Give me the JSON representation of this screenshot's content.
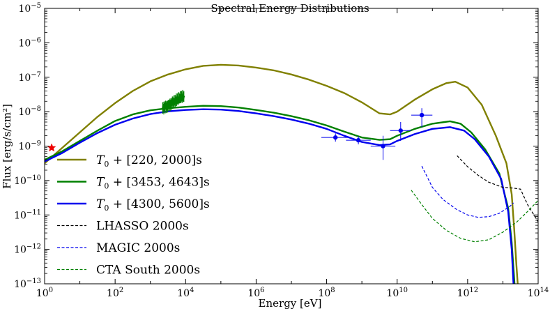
{
  "chart_data": {
    "type": "line",
    "title": "Spectral Energy Distributions",
    "xlabel": "Energy [eV]",
    "ylabel": "Flux [erg/s/cm²]",
    "xscale": "log",
    "yscale": "log",
    "xlim_exp": [
      0,
      14
    ],
    "ylim_exp": [
      -13,
      -5
    ],
    "xticks": [
      {
        "exp": 0,
        "base": "10",
        "sup": "0"
      },
      {
        "exp": 2,
        "base": "10",
        "sup": "2"
      },
      {
        "exp": 4,
        "base": "10",
        "sup": "4"
      },
      {
        "exp": 6,
        "base": "10",
        "sup": "6"
      },
      {
        "exp": 8,
        "base": "10",
        "sup": "8"
      },
      {
        "exp": 10,
        "base": "10",
        "sup": "10"
      },
      {
        "exp": 12,
        "base": "10",
        "sup": "12"
      },
      {
        "exp": 14,
        "base": "10",
        "sup": "14"
      }
    ],
    "yticks": [
      {
        "exp": -5,
        "base": "10",
        "sup": "−5"
      },
      {
        "exp": -6,
        "base": "10",
        "sup": "−6"
      },
      {
        "exp": -7,
        "base": "10",
        "sup": "−7"
      },
      {
        "exp": -8,
        "base": "10",
        "sup": "−8"
      },
      {
        "exp": -9,
        "base": "10",
        "sup": "−9"
      },
      {
        "exp": -10,
        "base": "10",
        "sup": "−10"
      },
      {
        "exp": -11,
        "base": "10",
        "sup": "−11"
      },
      {
        "exp": -12,
        "base": "10",
        "sup": "−12"
      },
      {
        "exp": -13,
        "base": "10",
        "sup": "−13"
      }
    ],
    "series": [
      {
        "key": "s220",
        "name": "T0 + [220, 2000]s",
        "label_main": "T",
        "label_sub": "0",
        "label_rest": " + [220, 2000]s",
        "color": "#808000",
        "style": "solid",
        "points": [
          [
            0,
            -9.5
          ],
          [
            0.5,
            -9.05
          ],
          [
            1,
            -8.6
          ],
          [
            1.5,
            -8.15
          ],
          [
            2,
            -7.75
          ],
          [
            2.5,
            -7.4
          ],
          [
            3,
            -7.12
          ],
          [
            3.5,
            -6.92
          ],
          [
            4,
            -6.77
          ],
          [
            4.5,
            -6.67
          ],
          [
            5,
            -6.64
          ],
          [
            5.5,
            -6.66
          ],
          [
            6,
            -6.72
          ],
          [
            6.5,
            -6.8
          ],
          [
            7,
            -6.92
          ],
          [
            7.5,
            -7.07
          ],
          [
            8,
            -7.25
          ],
          [
            8.5,
            -7.46
          ],
          [
            9,
            -7.73
          ],
          [
            9.5,
            -8.05
          ],
          [
            9.8,
            -8.08
          ],
          [
            10,
            -8.0
          ],
          [
            10.5,
            -7.65
          ],
          [
            11,
            -7.35
          ],
          [
            11.4,
            -7.17
          ],
          [
            11.65,
            -7.13
          ],
          [
            12,
            -7.3
          ],
          [
            12.4,
            -7.8
          ],
          [
            12.8,
            -8.7
          ],
          [
            13.1,
            -9.5
          ],
          [
            13.25,
            -10.4
          ],
          [
            13.32,
            -11.4
          ],
          [
            13.38,
            -12.4
          ],
          [
            13.42,
            -13.0
          ]
        ]
      },
      {
        "key": "s3453",
        "name": "T0 + [3453, 4643]s",
        "label_main": "T",
        "label_sub": "0",
        "label_rest": " + [3453, 4643]s",
        "color": "#008000",
        "style": "solid",
        "points": [
          [
            0,
            -9.4
          ],
          [
            0.5,
            -9.15
          ],
          [
            1,
            -8.85
          ],
          [
            1.5,
            -8.55
          ],
          [
            2,
            -8.27
          ],
          [
            2.5,
            -8.08
          ],
          [
            3,
            -7.96
          ],
          [
            3.5,
            -7.9
          ],
          [
            4,
            -7.86
          ],
          [
            4.5,
            -7.83
          ],
          [
            5,
            -7.84
          ],
          [
            5.5,
            -7.88
          ],
          [
            6,
            -7.95
          ],
          [
            6.5,
            -8.03
          ],
          [
            7,
            -8.13
          ],
          [
            7.5,
            -8.25
          ],
          [
            8,
            -8.4
          ],
          [
            8.5,
            -8.58
          ],
          [
            9,
            -8.75
          ],
          [
            9.5,
            -8.82
          ],
          [
            9.8,
            -8.8
          ],
          [
            10,
            -8.7
          ],
          [
            10.5,
            -8.5
          ],
          [
            11,
            -8.35
          ],
          [
            11.5,
            -8.28
          ],
          [
            11.8,
            -8.35
          ],
          [
            12.1,
            -8.6
          ],
          [
            12.5,
            -9.1
          ],
          [
            12.9,
            -9.8
          ],
          [
            13.15,
            -10.8
          ],
          [
            13.25,
            -11.8
          ],
          [
            13.33,
            -13.0
          ]
        ]
      },
      {
        "key": "s4300",
        "name": "T0 + [4300, 5600]s",
        "label_main": "T",
        "label_sub": "0",
        "label_rest": " + [4300, 5600]s",
        "color": "#0000ee",
        "style": "solid",
        "points": [
          [
            0,
            -9.45
          ],
          [
            0.5,
            -9.2
          ],
          [
            1,
            -8.9
          ],
          [
            1.5,
            -8.62
          ],
          [
            2,
            -8.38
          ],
          [
            2.5,
            -8.2
          ],
          [
            3,
            -8.07
          ],
          [
            3.5,
            -7.99
          ],
          [
            4,
            -7.95
          ],
          [
            4.5,
            -7.93
          ],
          [
            5,
            -7.94
          ],
          [
            5.5,
            -7.98
          ],
          [
            6,
            -8.05
          ],
          [
            6.5,
            -8.13
          ],
          [
            7,
            -8.23
          ],
          [
            7.5,
            -8.35
          ],
          [
            8,
            -8.5
          ],
          [
            8.5,
            -8.7
          ],
          [
            9,
            -8.88
          ],
          [
            9.5,
            -8.97
          ],
          [
            9.8,
            -8.95
          ],
          [
            10,
            -8.85
          ],
          [
            10.5,
            -8.65
          ],
          [
            11,
            -8.5
          ],
          [
            11.5,
            -8.45
          ],
          [
            11.9,
            -8.55
          ],
          [
            12.2,
            -8.8
          ],
          [
            12.6,
            -9.3
          ],
          [
            12.95,
            -9.95
          ],
          [
            13.15,
            -10.9
          ],
          [
            13.25,
            -12.0
          ],
          [
            13.3,
            -13.0
          ]
        ]
      },
      {
        "key": "lhasso",
        "name": "LHASSO 2000s",
        "label_main": "LHASSO 2000s",
        "label_sub": "",
        "label_rest": "",
        "color": "#000000",
        "style": "dashed",
        "points": [
          [
            11.7,
            -9.28
          ],
          [
            12.0,
            -9.6
          ],
          [
            12.3,
            -9.85
          ],
          [
            12.6,
            -10.05
          ],
          [
            13.0,
            -10.2
          ],
          [
            13.3,
            -10.22
          ],
          [
            13.5,
            -10.25
          ],
          [
            13.7,
            -10.7
          ],
          [
            14.0,
            -11.2
          ]
        ]
      },
      {
        "key": "magic",
        "name": "MAGIC 2000s",
        "label_main": "MAGIC 2000s",
        "label_sub": "",
        "label_rest": "",
        "color": "#0000ee",
        "style": "dashed",
        "points": [
          [
            10.7,
            -9.58
          ],
          [
            11.0,
            -10.2
          ],
          [
            11.3,
            -10.55
          ],
          [
            11.7,
            -10.85
          ],
          [
            12.0,
            -11.0
          ],
          [
            12.3,
            -11.07
          ],
          [
            12.6,
            -11.05
          ],
          [
            12.9,
            -10.95
          ],
          [
            13.2,
            -10.75
          ],
          [
            13.3,
            -10.65
          ]
        ]
      },
      {
        "key": "cta",
        "name": "CTA South 2000s",
        "label_main": "CTA South 2000s",
        "label_sub": "",
        "label_rest": "",
        "color": "#008000",
        "style": "dashed",
        "points": [
          [
            10.4,
            -10.28
          ],
          [
            10.7,
            -10.7
          ],
          [
            11.0,
            -11.1
          ],
          [
            11.4,
            -11.45
          ],
          [
            11.8,
            -11.68
          ],
          [
            12.2,
            -11.78
          ],
          [
            12.6,
            -11.72
          ],
          [
            13.0,
            -11.5
          ],
          [
            13.4,
            -11.2
          ],
          [
            13.7,
            -10.9
          ],
          [
            14.0,
            -10.58
          ]
        ]
      }
    ],
    "magic_points": [
      {
        "x": 8.25,
        "y": -8.75,
        "xerr": 0.4,
        "yerr_low": 0.12,
        "yerr_high": 0.12
      },
      {
        "x": 8.9,
        "y": -8.83,
        "xerr": 0.35,
        "yerr_low": 0.12,
        "yerr_high": 0.12
      },
      {
        "x": 9.6,
        "y": -9.0,
        "xerr": 0.35,
        "yerr_low": 0.4,
        "yerr_high": 0.3
      },
      {
        "x": 10.1,
        "y": -8.55,
        "xerr": 0.3,
        "yerr_low": 0.3,
        "yerr_high": 0.25
      },
      {
        "x": 10.7,
        "y": -8.1,
        "xerr": 0.3,
        "yerr_low": 0.35,
        "yerr_high": 0.2
      }
    ],
    "xrt_band": {
      "color": "#008000",
      "x_start": 3.35,
      "x_end": 3.95,
      "y_start": -7.9,
      "y_end": -7.55,
      "spread": 0.32
    },
    "optical_point": {
      "x": 0.2,
      "y": -9.05,
      "color": "#ee0000",
      "marker": "star"
    },
    "legend_placement": "lower-left"
  }
}
